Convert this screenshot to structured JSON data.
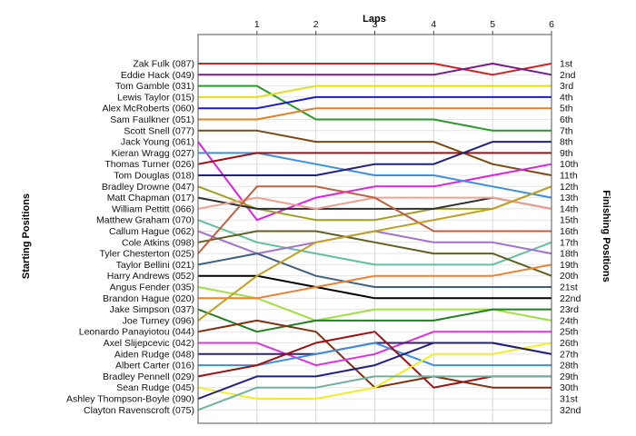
{
  "chart_data": {
    "type": "line",
    "title": "Laps",
    "xlabel": "Laps",
    "ylabel_left": "Starting Positions",
    "ylabel_right": "Finishing Positions",
    "laps": [
      0,
      1,
      2,
      3,
      4,
      5,
      6
    ],
    "lap_tick_labels": [
      "1",
      "2",
      "3",
      "4",
      "5",
      "6"
    ],
    "finishing_labels": [
      "1st",
      "2nd",
      "3rd",
      "4th",
      "5th",
      "6th",
      "7th",
      "8th",
      "9th",
      "10th",
      "11th",
      "12th",
      "13th",
      "14th",
      "15th",
      "16th",
      "17th",
      "18th",
      "19th",
      "20th",
      "21st",
      "22nd",
      "23rd",
      "24th",
      "25th",
      "26th",
      "27th",
      "28th",
      "29th",
      "30th",
      "31st",
      "32nd"
    ],
    "grid": true,
    "series": [
      {
        "name": "Zak Fulk (087)",
        "color": "#d42020",
        "positions": [
          1,
          1,
          1,
          1,
          1,
          2,
          1
        ]
      },
      {
        "name": "Eddie Hack (049)",
        "color": "#7a1a8a",
        "positions": [
          2,
          2,
          2,
          2,
          2,
          1,
          2
        ]
      },
      {
        "name": "Tom Gamble (031)",
        "color": "#2a9a2a",
        "positions": [
          3,
          3,
          6,
          6,
          6,
          7,
          7
        ]
      },
      {
        "name": "Lewis Taylor (015)",
        "color": "#e0e020",
        "positions": [
          4,
          4,
          3,
          3,
          3,
          3,
          3
        ]
      },
      {
        "name": "Alex McRoberts (060)",
        "color": "#1a1ad0",
        "positions": [
          5,
          5,
          4,
          4,
          4,
          4,
          4
        ]
      },
      {
        "name": "Sam Faulkner (051)",
        "color": "#e08020",
        "positions": [
          6,
          6,
          5,
          5,
          5,
          5,
          5
        ]
      },
      {
        "name": "Scott Snell (077)",
        "color": "#7a4a10",
        "positions": [
          7,
          7,
          8,
          8,
          8,
          10,
          11
        ]
      },
      {
        "name": "Jack Young (061)",
        "color": "#e020e0",
        "positions": [
          8,
          15,
          13,
          12,
          12,
          11,
          10
        ]
      },
      {
        "name": "Kieran Wragg (027)",
        "color": "#3a90e0",
        "positions": [
          9,
          9,
          10,
          11,
          11,
          12,
          13
        ]
      },
      {
        "name": "Thomas Turner (026)",
        "color": "#a01010",
        "positions": [
          10,
          9,
          9,
          9,
          9,
          9,
          9
        ]
      },
      {
        "name": "Tom Douglas (018)",
        "color": "#202080",
        "positions": [
          11,
          11,
          11,
          10,
          10,
          8,
          8
        ]
      },
      {
        "name": "Bradley Drowne (047)",
        "color": "#a0a020",
        "positions": [
          12,
          14,
          15,
          15,
          14,
          14,
          12
        ]
      },
      {
        "name": "Matt Chapman (017)",
        "color": "#303030",
        "positions": [
          13,
          14,
          14,
          14,
          14,
          13,
          14
        ]
      },
      {
        "name": "William Pettitt (066)",
        "color": "#f0a090",
        "positions": [
          14,
          13,
          14,
          13,
          13,
          13,
          14
        ]
      },
      {
        "name": "Matthew Graham (070)",
        "color": "#60c0a0",
        "positions": [
          15,
          17,
          18,
          19,
          19,
          19,
          17
        ]
      },
      {
        "name": "Callum Hague (062)",
        "color": "#a070d0",
        "positions": [
          16,
          18,
          17,
          16,
          17,
          17,
          18
        ]
      },
      {
        "name": "Cole Atkins (098)",
        "color": "#606020",
        "positions": [
          17,
          16,
          16,
          17,
          18,
          18,
          20
        ]
      },
      {
        "name": "Tyler Chesterton (025)",
        "color": "#c06040",
        "positions": [
          18,
          12,
          12,
          13,
          16,
          16,
          16
        ]
      },
      {
        "name": "Taylor Bellini (021)",
        "color": "#406080",
        "positions": [
          19,
          18,
          20,
          21,
          21,
          21,
          21
        ]
      },
      {
        "name": "Harry Andrews (052)",
        "color": "#000000",
        "positions": [
          20,
          20,
          21,
          22,
          22,
          22,
          22
        ]
      },
      {
        "name": "Angus Fender (035)",
        "color": "#a0e040",
        "positions": [
          21,
          22,
          24,
          23,
          23,
          23,
          24
        ]
      },
      {
        "name": "Brandon Hague (020)",
        "color": "#f08030",
        "positions": [
          22,
          22,
          21,
          20,
          20,
          20,
          19
        ]
      },
      {
        "name": "Jake Simpson (037)",
        "color": "#208020",
        "positions": [
          23,
          25,
          24,
          24,
          24,
          23,
          23
        ]
      },
      {
        "name": "Joe Turney (096)",
        "color": "#c0a020",
        "positions": [
          24,
          20,
          17,
          16,
          15,
          14,
          12
        ]
      },
      {
        "name": "Leonardo Panayiotou (044)",
        "color": "#803010",
        "positions": [
          25,
          24,
          25,
          30,
          29,
          30,
          30
        ]
      },
      {
        "name": "Axel Slijepcevic (042)",
        "color": "#e030e0",
        "positions": [
          26,
          26,
          28,
          27,
          25,
          25,
          25
        ]
      },
      {
        "name": "Aiden Rudge (048)",
        "color": "#302070",
        "positions": [
          27,
          27,
          27,
          26,
          26,
          26,
          27
        ]
      },
      {
        "name": "Albert Carter (016)",
        "color": "#3a90e0",
        "positions": [
          28,
          28,
          27,
          26,
          28,
          28,
          28
        ]
      },
      {
        "name": "Bradley Pennell (029)",
        "color": "#a01010",
        "positions": [
          29,
          28,
          26,
          25,
          30,
          29,
          29
        ]
      },
      {
        "name": "Sean Rudge (045)",
        "color": "#f0f020",
        "positions": [
          30,
          31,
          31,
          30,
          27,
          27,
          26
        ]
      },
      {
        "name": "Ashley Thompson-Boyle (090)",
        "color": "#202080",
        "positions": [
          31,
          29,
          29,
          28,
          26,
          26,
          27
        ]
      },
      {
        "name": "Clayton Ravenscroft (075)",
        "color": "#70b0a0",
        "positions": [
          32,
          30,
          30,
          29,
          29,
          29,
          29
        ]
      }
    ]
  }
}
